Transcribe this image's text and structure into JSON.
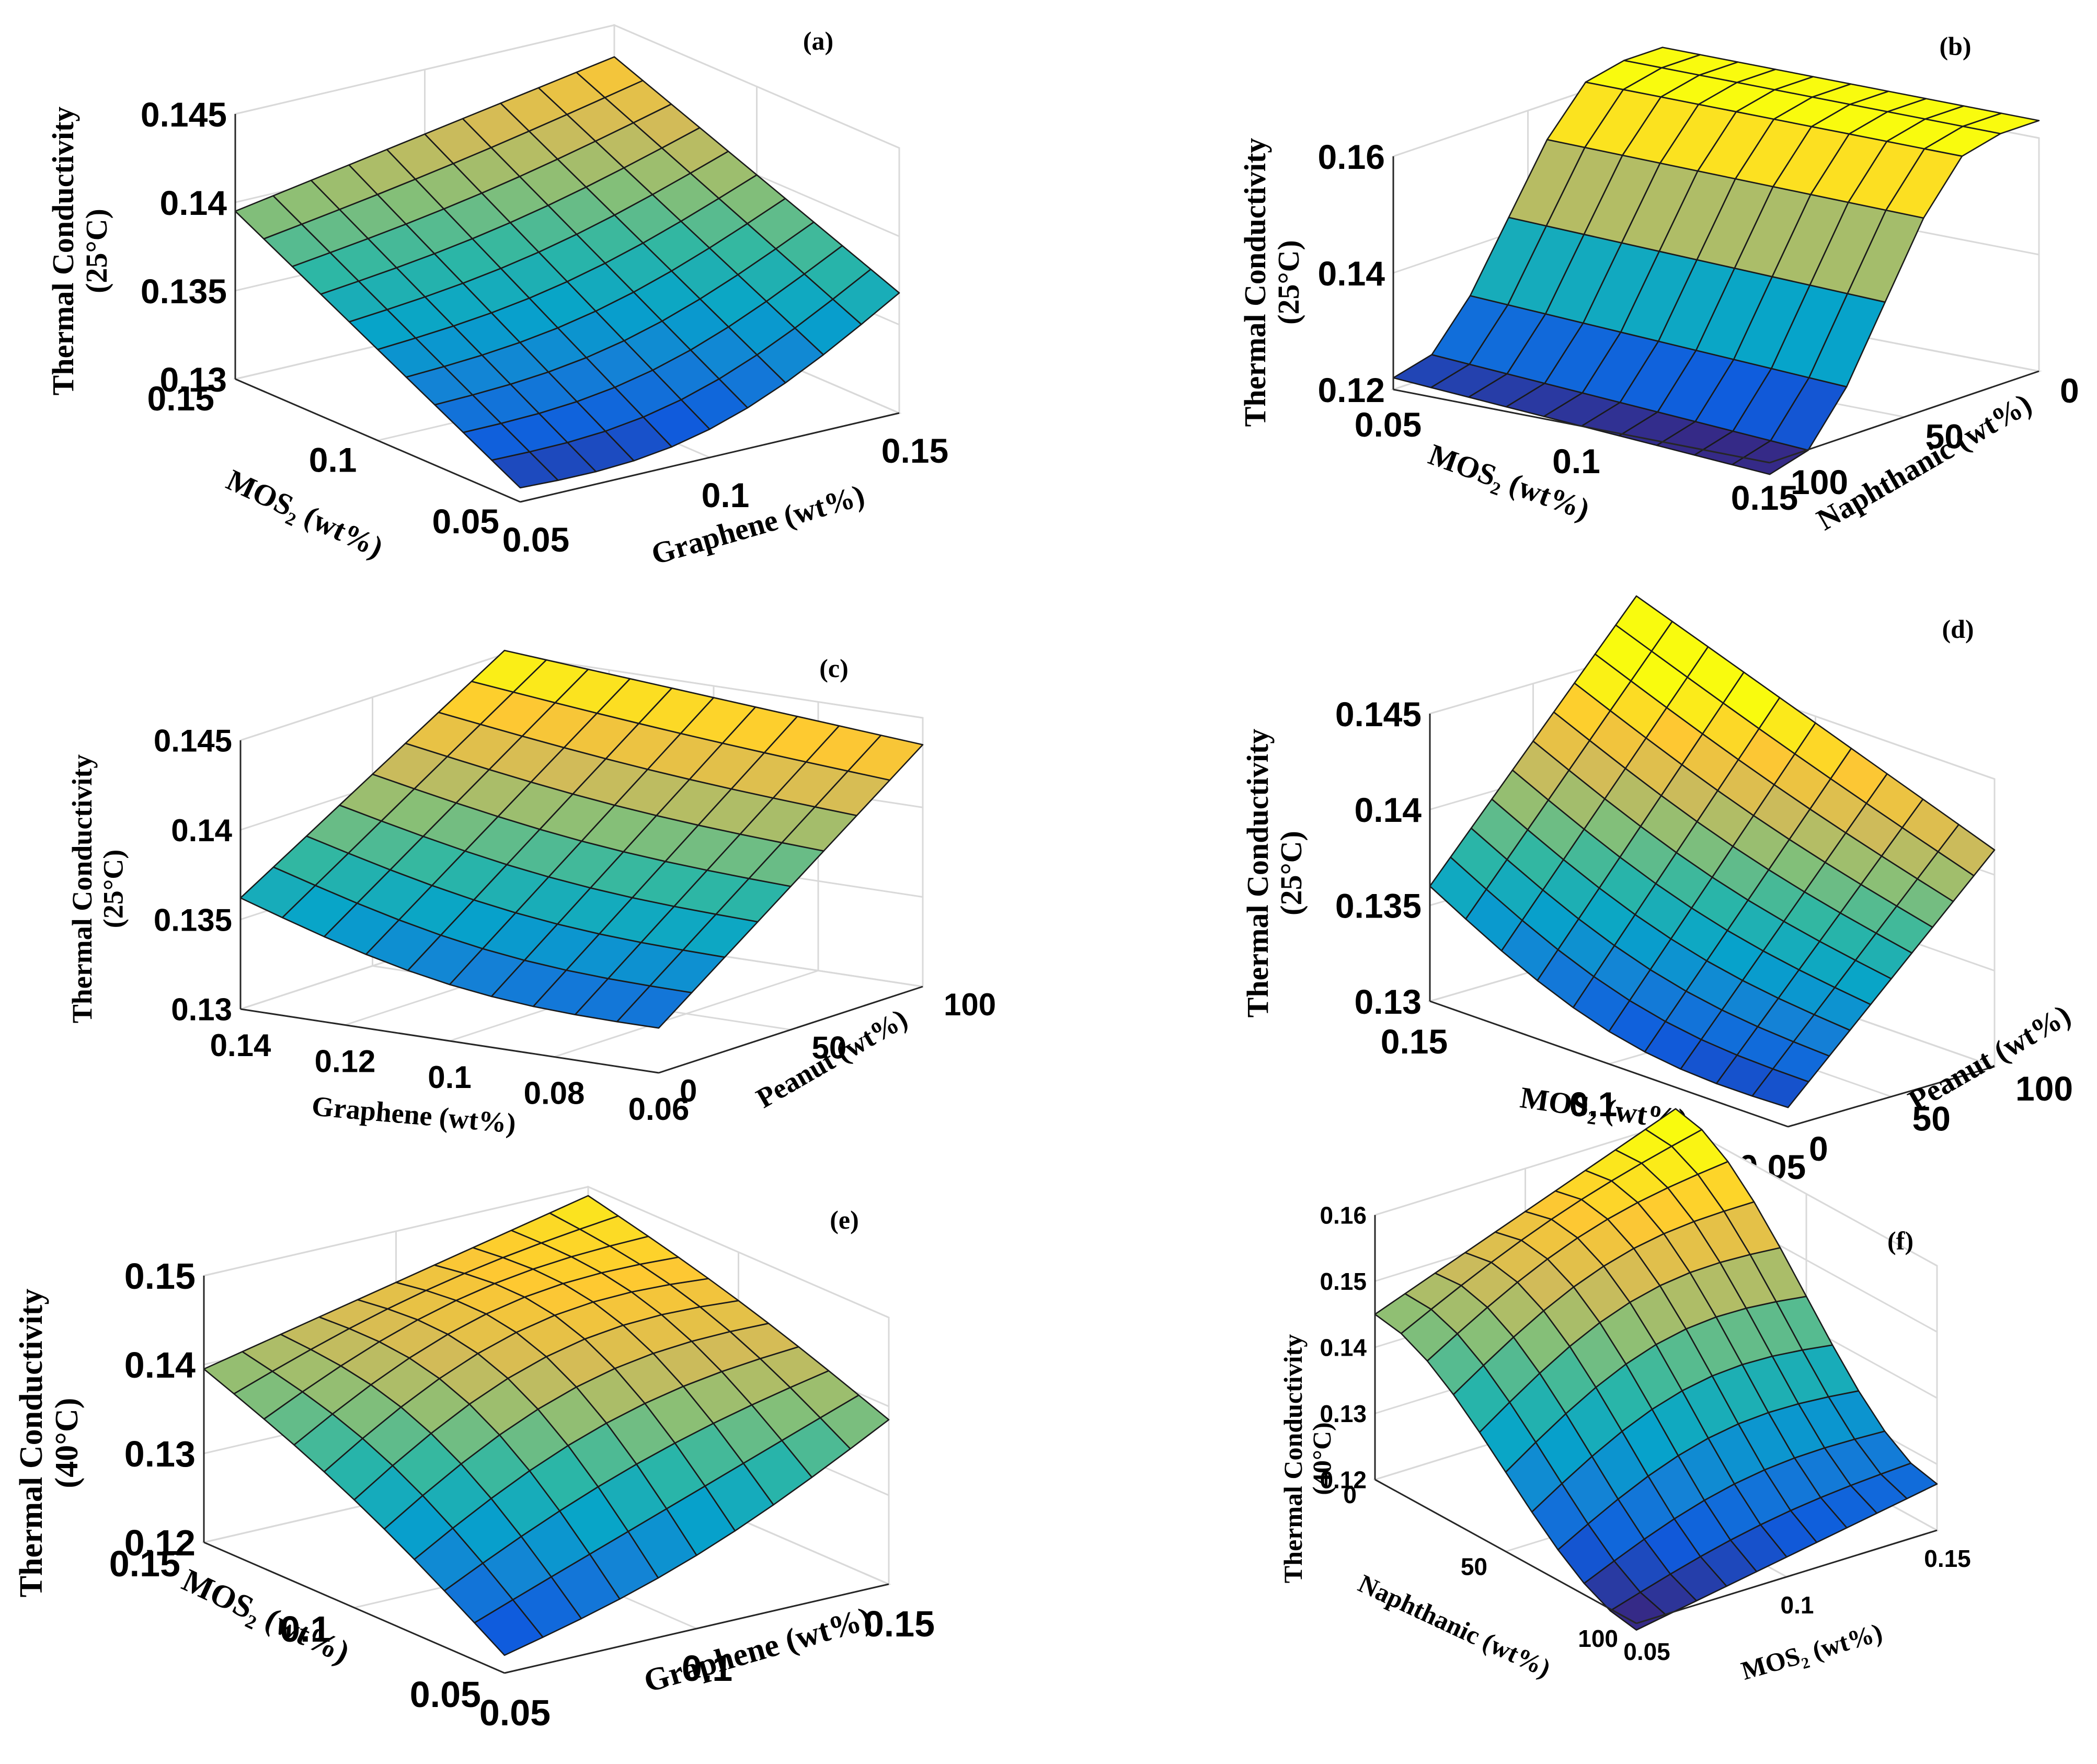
{
  "figure_title": "",
  "colormap": {
    "name": "parula",
    "stops": [
      "#352a87",
      "#0f5cdd",
      "#1481d6",
      "#06a4ca",
      "#2eb7a4",
      "#87bf77",
      "#d1bb59",
      "#fec832",
      "#f9fb0e"
    ]
  },
  "chart_data": [
    {
      "type": "surface",
      "panel": "(a)",
      "x_label": "MOS",
      "x_sub": "2",
      "x_unit": " (wt%)",
      "y_label": "Graphene (wt%)",
      "z_label_1": "Thermal Conductivity",
      "z_label_2": "(25°C)",
      "x_ticks": [
        "0.15",
        "0.1",
        "0.05"
      ],
      "y_ticks": [
        "0.05",
        "0.1",
        "0.15"
      ],
      "z_ticks": [
        "0.13",
        "0.135",
        "0.14",
        "0.145"
      ],
      "x_range": [
        0.05,
        0.15
      ],
      "y_range": [
        0.05,
        0.15
      ],
      "zlim": [
        0.13,
        0.145
      ],
      "grid_size": [
        10,
        10
      ],
      "corners": {
        "x_high_y_low": 0.1395,
        "x_low_y_low": 0.1308,
        "x_high_y_high": 0.1432,
        "x_low_y_high": 0.1368
      }
    },
    {
      "type": "surface",
      "panel": "(b)",
      "x_label": "MOS",
      "x_sub": "2",
      "x_unit": " (wt%)",
      "y_label": "Naphthanic (wt%)",
      "z_label_1": "Thermal Conductivity",
      "z_label_2": "(25°C)",
      "x_ticks": [
        "0.05",
        "0.1",
        "0.15"
      ],
      "y_ticks": [
        "100",
        "50",
        "0"
      ],
      "z_ticks": [
        "0.12",
        "0.14",
        "0.16"
      ],
      "x_range": [
        0.05,
        0.15
      ],
      "y_range": [
        0,
        100
      ],
      "zlim": [
        0.12,
        0.16
      ],
      "grid_size": [
        10,
        7
      ],
      "corners": {
        "naphthanic_100_low": 0.122,
        "naphthanic_0_high": 0.163
      }
    },
    {
      "type": "surface",
      "panel": "(c)",
      "x_label": "Graphene (wt%)",
      "y_label": "Peanut (wt%)",
      "z_label_1": "Thermal Conductivity",
      "z_label_2": "(25°C)",
      "x_ticks": [
        "0.14",
        "0.12",
        "0.1",
        "0.08",
        "0.06"
      ],
      "y_ticks": [
        "0",
        "50",
        "100"
      ],
      "z_ticks": [
        "0.13",
        "0.135",
        "0.14",
        "0.145"
      ],
      "x_range": [
        0.06,
        0.14
      ],
      "y_range": [
        0,
        100
      ],
      "zlim": [
        0.13,
        0.145
      ],
      "grid_size": [
        10,
        8
      ],
      "corners": {
        "x_high_y_low": 0.1362,
        "x_low_y_low": 0.1325,
        "x_high_y_high": 0.1452,
        "x_low_y_high": 0.1435
      }
    },
    {
      "type": "surface",
      "panel": "(d)",
      "x_label": "MOS",
      "x_sub": "2",
      "x_unit": " (wt%)",
      "y_label": "Peanut (wt%)",
      "z_label_1": "Thermal Conductivity",
      "z_label_2": "(25°C)",
      "x_ticks": [
        "0.15",
        "0.1",
        "0.05"
      ],
      "y_ticks": [
        "0",
        "50",
        "100"
      ],
      "z_ticks": [
        "0.13",
        "0.135",
        "0.14",
        "0.145"
      ],
      "x_range": [
        0.05,
        0.15
      ],
      "y_range": [
        0,
        100
      ],
      "zlim": [
        0.13,
        0.145
      ],
      "grid_size": [
        10,
        10
      ],
      "corners": {
        "x_high_y_low": 0.136,
        "x_low_y_low": 0.131,
        "x_high_y_high": 0.148,
        "x_low_y_high": 0.1413
      }
    },
    {
      "type": "surface",
      "panel": "(e)",
      "x_label": "MOS",
      "x_sub": "2",
      "x_unit": " (wt%)",
      "y_label": "Graphene (wt%)",
      "z_label_1": "Thermal Conductivity",
      "z_label_2": "(40°C)",
      "x_ticks": [
        "0.15",
        "0.1",
        "0.05"
      ],
      "y_ticks": [
        "0.05",
        "0.1",
        "0.15"
      ],
      "z_ticks": [
        "0.12",
        "0.13",
        "0.14",
        "0.15"
      ],
      "x_range": [
        0.05,
        0.15
      ],
      "y_range": [
        0.05,
        0.15
      ],
      "zlim": [
        0.12,
        0.15
      ],
      "grid_size": [
        10,
        10
      ],
      "corners": {
        "x_high_y_low": 0.1395,
        "x_low_y_low": 0.122,
        "x_high_y_high": 0.149,
        "x_low_y_high": 0.1385
      }
    },
    {
      "type": "surface",
      "panel": "(f)",
      "x_label": "Naphthanic (wt%)",
      "y_label": "MOS",
      "y_sub": "2",
      "y_unit": " (wt%)",
      "z_label_1": "Thermal Conductivity",
      "z_label_2": "(40°C)",
      "x_ticks": [
        "0",
        "50",
        "100"
      ],
      "y_ticks": [
        "0.05",
        "0.1",
        "0.15"
      ],
      "z_ticks": [
        "0.12",
        "0.13",
        "0.14",
        "0.15",
        "0.16"
      ],
      "x_range": [
        0,
        100
      ],
      "y_range": [
        0.05,
        0.15
      ],
      "zlim": [
        0.12,
        0.16
      ],
      "grid_size": [
        10,
        10
      ],
      "corners": {
        "x_low_y_low": 0.145,
        "x_high_y_low": 0.119,
        "x_low_y_high": 0.162,
        "x_high_y_high": 0.127
      }
    }
  ]
}
